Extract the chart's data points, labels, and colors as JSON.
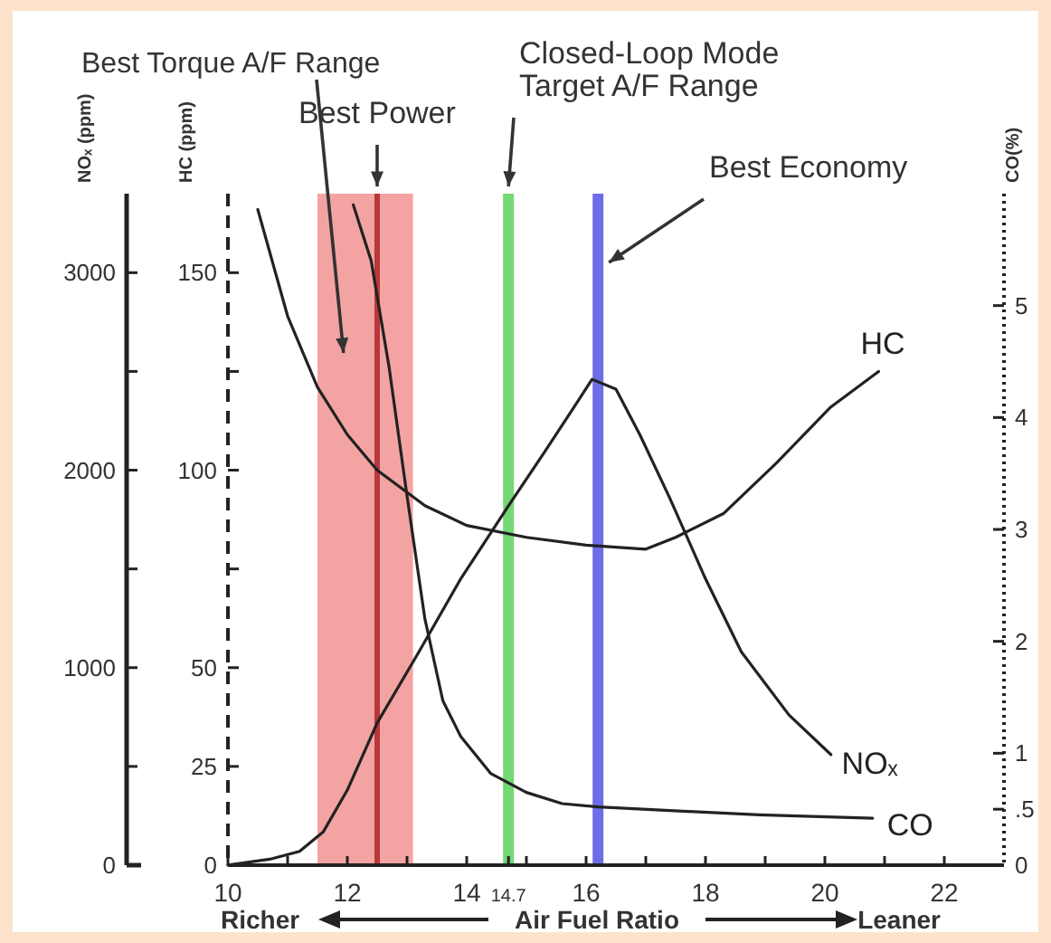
{
  "chart_data": {
    "type": "line",
    "xlabel": "Air Fuel Ratio",
    "ylabel": "NOₓ (ppm)",
    "y2label": "HC (ppm)",
    "y3label": "CO(%)",
    "xlim": [
      10,
      23
    ],
    "xticks": [
      10,
      {
        "value": 11,
        "label": null
      },
      12,
      {
        "value": 13,
        "label": null
      },
      14,
      14.7,
      {
        "value": 15,
        "label": null
      },
      16,
      {
        "value": 17,
        "label": null
      },
      18,
      {
        "value": 19,
        "label": null
      },
      20,
      {
        "value": 21,
        "label": null
      },
      22
    ],
    "ylim": [
      0,
      3400
    ],
    "yticks": [
      0,
      {
        "value": 500,
        "label": null
      },
      1000,
      {
        "value": 1500,
        "label": null
      },
      2000,
      {
        "value": 2500,
        "label": null
      },
      3000
    ],
    "y2lim": [
      0,
      170
    ],
    "y2ticks": [
      0,
      25,
      50,
      {
        "value": 75,
        "label": null
      },
      100,
      {
        "value": 125,
        "label": null
      },
      150
    ],
    "y3lim": [
      0,
      6
    ],
    "y3ticks": [
      0,
      {
        "value": 0.5,
        "label": ".5"
      },
      1,
      2,
      3,
      4,
      5
    ],
    "marker": "none",
    "line_style": "solid",
    "series": [
      {
        "name": "HC",
        "color": "#222222",
        "axis": "y2",
        "x": [
          10.5,
          11.0,
          11.5,
          12.0,
          12.5,
          13.3,
          14.0,
          15.0,
          16.0,
          17.0,
          17.5,
          18.3,
          19.2,
          20.1,
          20.9
        ],
        "values": [
          166,
          139,
          121,
          109,
          100,
          91,
          86,
          83,
          81,
          80,
          83,
          89,
          102,
          116,
          125
        ]
      },
      {
        "name": "NOₓ",
        "color": "#222222",
        "x": [
          10.0,
          10.7,
          11.2,
          11.6,
          12.0,
          12.5,
          13.2,
          13.9,
          14.7,
          15.3,
          15.8,
          16.1,
          16.5,
          16.9,
          17.4,
          18.0,
          18.6,
          19.4,
          20.1
        ],
        "values": [
          0,
          30,
          70,
          170,
          380,
          720,
          1080,
          1450,
          1820,
          2090,
          2320,
          2460,
          2410,
          2180,
          1860,
          1450,
          1080,
          760,
          560
        ]
      },
      {
        "name": "CO",
        "color": "#222222",
        "axis": "y3",
        "x": [
          12.1,
          12.4,
          12.7,
          13.0,
          13.3,
          13.6,
          13.9,
          14.4,
          15.0,
          15.6,
          16.2,
          17.7,
          18.9,
          20.8
        ],
        "values": [
          5.9,
          5.4,
          4.45,
          3.3,
          2.2,
          1.47,
          1.15,
          0.82,
          0.65,
          0.55,
          0.52,
          0.48,
          0.45,
          0.42
        ]
      }
    ],
    "bands": [
      {
        "axis": "x",
        "from": 11.5,
        "to": 13.1,
        "label": "Best Torque A/F Range",
        "color": "#f4a3a3"
      }
    ],
    "ref_lines": [
      {
        "axis": "x",
        "value": 12.5,
        "label": "Best Power",
        "color": "#b8383a"
      },
      {
        "axis": "x",
        "value": 14.7,
        "label": "Closed-Loop Mode\nTarget A/F Range",
        "color": "#74d874"
      },
      {
        "axis": "x",
        "value": 16.2,
        "label": "Best Economy",
        "color": "#6d6de6"
      }
    ],
    "annotations": [
      "Richer",
      "Leaner"
    ]
  }
}
